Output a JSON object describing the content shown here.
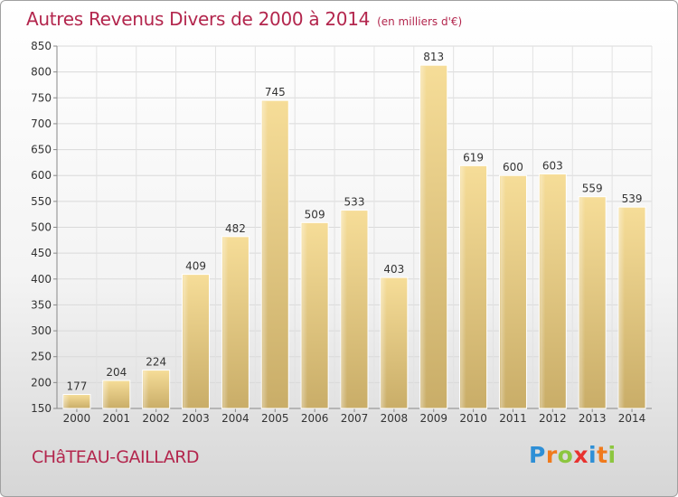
{
  "title": "Autres Revenus Divers de 2000 à 2014",
  "unit": "(en milliers d'€)",
  "location": "CHâTEAU-GAILLARD",
  "logo": {
    "letters": [
      "P",
      "r",
      "o",
      "x",
      "i",
      "t",
      "i"
    ],
    "colors": [
      "#2e8fd6",
      "#f07a1c",
      "#8cc63f",
      "#e8322f",
      "#2e8fd6",
      "#f07a1c",
      "#8cc63f"
    ]
  },
  "chart_data": {
    "type": "bar",
    "title": "Autres Revenus Divers de 2000 à 2014",
    "subtitle": "(en milliers d'€)",
    "xlabel": "",
    "ylabel": "",
    "categories": [
      "2000",
      "2001",
      "2002",
      "2003",
      "2004",
      "2005",
      "2006",
      "2007",
      "2008",
      "2009",
      "2010",
      "2011",
      "2012",
      "2013",
      "2014"
    ],
    "values": [
      177,
      204,
      224,
      409,
      482,
      745,
      509,
      533,
      403,
      813,
      619,
      600,
      603,
      559,
      539
    ],
    "ylim": [
      150,
      850
    ],
    "yticks": [
      150,
      200,
      250,
      300,
      350,
      400,
      450,
      500,
      550,
      600,
      650,
      700,
      750,
      800,
      850
    ],
    "grid": true,
    "legend": "none",
    "bar_color": "#ecd28f"
  }
}
